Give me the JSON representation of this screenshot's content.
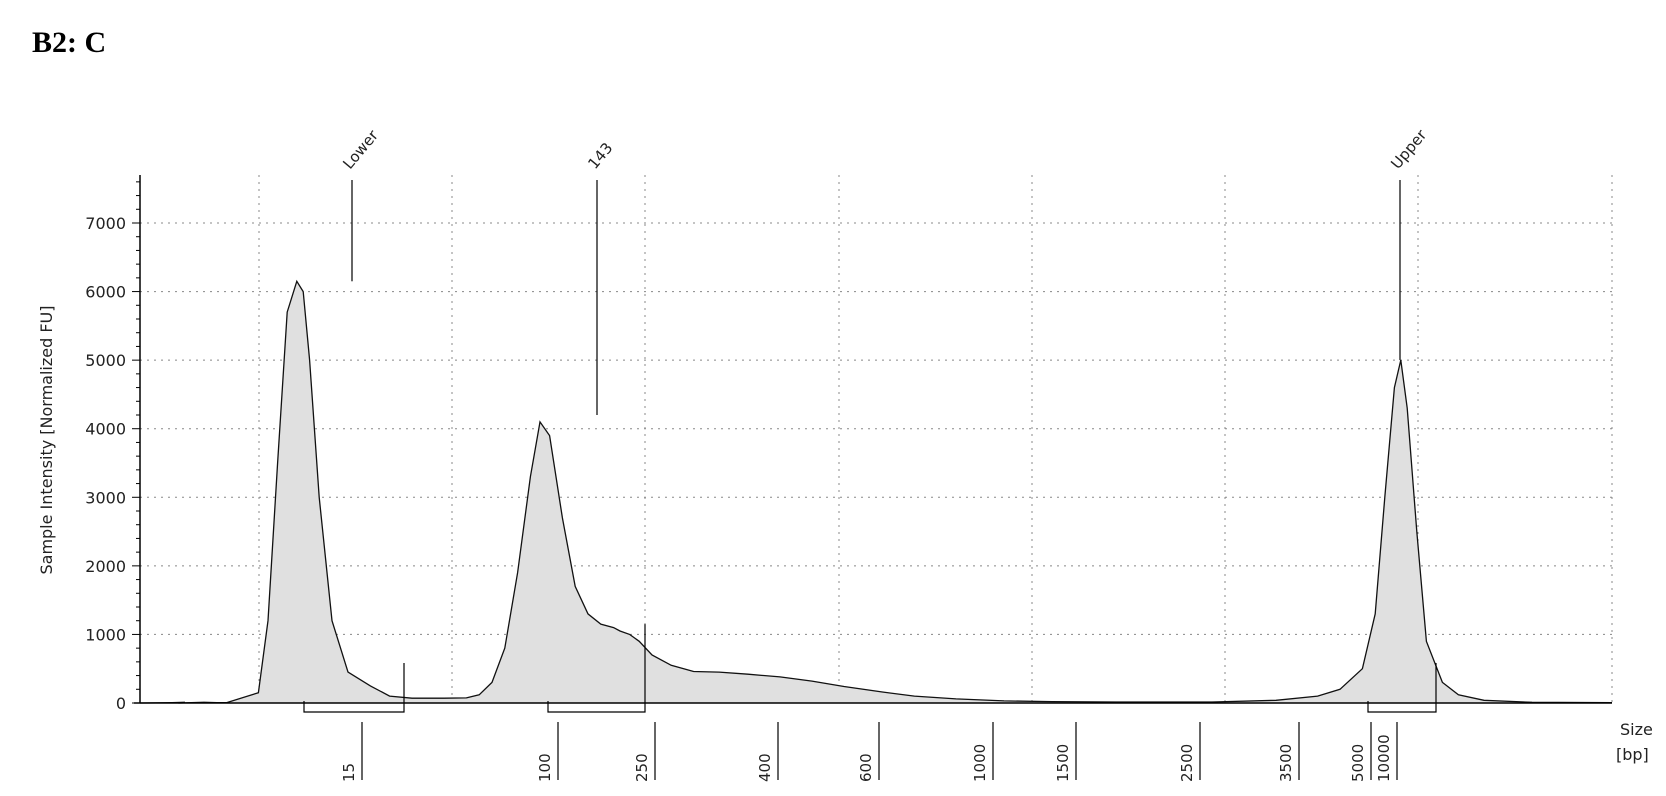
{
  "page": {
    "title": "B2: C"
  },
  "chart_data": {
    "type": "area",
    "title": "",
    "ylabel": "Sample Intensity [Normalized FU]",
    "xlabel": "Size",
    "xunit": "[bp]",
    "ylim": [
      0,
      7700
    ],
    "yticks": [
      0,
      1000,
      2000,
      3000,
      4000,
      5000,
      6000,
      7000
    ],
    "grid": "dotted",
    "fill_color": "#e0e0e0",
    "x_ticks": [
      "15",
      "100",
      "250",
      "400",
      "600",
      "1000",
      "1500",
      "2500",
      "3500",
      "5000",
      "10000"
    ],
    "peaks": [
      {
        "label": "Lower",
        "size": "15",
        "height": 6150
      },
      {
        "label": "143",
        "size": "143",
        "height": 4200
      },
      {
        "label": "Upper",
        "size": "10000",
        "height": 5000
      }
    ],
    "series": [
      {
        "values": [
          [
            0.0,
            0
          ],
          [
            0.1,
            5
          ],
          [
            0.14,
            10
          ],
          [
            0.12,
            0
          ],
          [
            0.2,
            10
          ],
          [
            0.24,
            5
          ],
          [
            0.27,
            5
          ],
          [
            0.37,
            150
          ],
          [
            0.4,
            1200
          ],
          [
            0.43,
            3500
          ],
          [
            0.46,
            5700
          ],
          [
            0.49,
            6150
          ],
          [
            0.51,
            6000
          ],
          [
            0.53,
            5000
          ],
          [
            0.56,
            3000
          ],
          [
            0.6,
            1200
          ],
          [
            0.65,
            450
          ],
          [
            0.72,
            250
          ],
          [
            0.78,
            100
          ],
          [
            0.85,
            70
          ],
          [
            0.95,
            70
          ],
          [
            1.02,
            75
          ],
          [
            1.06,
            120
          ],
          [
            1.1,
            300
          ],
          [
            1.14,
            800
          ],
          [
            1.18,
            1900
          ],
          [
            1.22,
            3300
          ],
          [
            1.25,
            4100
          ],
          [
            1.28,
            3900
          ],
          [
            1.32,
            2700
          ],
          [
            1.36,
            1700
          ],
          [
            1.4,
            1300
          ],
          [
            1.44,
            1150
          ],
          [
            1.48,
            1100
          ],
          [
            1.5,
            1050
          ],
          [
            1.53,
            1000
          ],
          [
            1.56,
            900
          ],
          [
            1.6,
            700
          ],
          [
            1.66,
            550
          ],
          [
            1.73,
            460
          ],
          [
            1.81,
            450
          ],
          [
            1.9,
            420
          ],
          [
            2.0,
            380
          ],
          [
            2.1,
            320
          ],
          [
            2.2,
            240
          ],
          [
            2.32,
            160
          ],
          [
            2.42,
            100
          ],
          [
            2.55,
            60
          ],
          [
            2.7,
            30
          ],
          [
            2.85,
            20
          ],
          [
            3.05,
            15
          ],
          [
            3.35,
            15
          ],
          [
            3.55,
            40
          ],
          [
            3.68,
            100
          ],
          [
            3.75,
            200
          ],
          [
            3.82,
            500
          ],
          [
            3.86,
            1300
          ],
          [
            3.89,
            3000
          ],
          [
            3.92,
            4600
          ],
          [
            3.94,
            5000
          ],
          [
            3.96,
            4300
          ],
          [
            3.99,
            2500
          ],
          [
            4.02,
            900
          ],
          [
            4.07,
            300
          ],
          [
            4.12,
            120
          ],
          [
            4.2,
            40
          ],
          [
            4.35,
            10
          ],
          [
            4.6,
            5
          ]
        ]
      }
    ],
    "regions": [
      {
        "from": "Lower",
        "level": 0
      },
      {
        "from": "143",
        "level": 0
      },
      {
        "from": "Upper",
        "level": 0
      }
    ]
  }
}
